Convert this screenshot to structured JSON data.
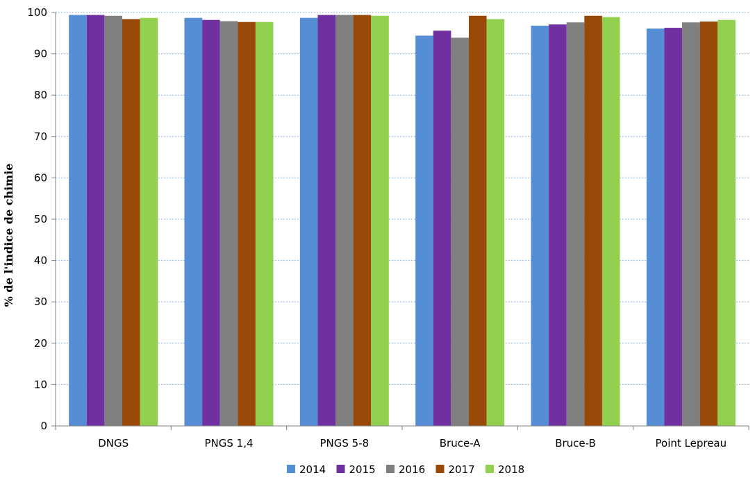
{
  "chart_data": {
    "type": "bar",
    "title": "",
    "xlabel": "",
    "ylabel": "% de l'indice de chimie",
    "ylim": [
      0,
      100
    ],
    "yticks": [
      0,
      10,
      20,
      30,
      40,
      50,
      60,
      70,
      80,
      90,
      100
    ],
    "grid": true,
    "legend_position": "bottom",
    "categories": [
      "DNGS",
      "PNGS 1,4",
      "PNGS 5-8",
      "Bruce-A",
      "Bruce-B",
      "Point Lepreau"
    ],
    "series": [
      {
        "name": "2014",
        "color": "#558ED5",
        "values": [
          99.4,
          98.7,
          98.7,
          94.4,
          96.8,
          96.1
        ]
      },
      {
        "name": "2015",
        "color": "#7030A0",
        "values": [
          99.4,
          98.2,
          99.4,
          95.6,
          97.1,
          96.3
        ]
      },
      {
        "name": "2016",
        "color": "#7F7F7F",
        "values": [
          99.2,
          97.9,
          99.4,
          93.9,
          97.6,
          97.6
        ]
      },
      {
        "name": "2017",
        "color": "#984807",
        "values": [
          98.4,
          97.7,
          99.4,
          99.2,
          99.2,
          97.8
        ]
      },
      {
        "name": "2018",
        "color": "#92D050",
        "values": [
          98.7,
          97.7,
          99.2,
          98.4,
          98.9,
          98.2
        ]
      }
    ]
  }
}
